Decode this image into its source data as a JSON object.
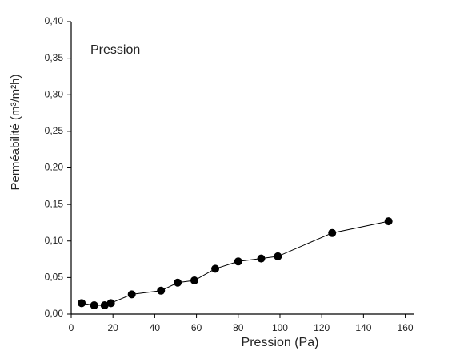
{
  "chart_data": {
    "type": "line",
    "annotation": "Pression",
    "x_label": "Pression (Pa)",
    "y_label": "Perméabilité (m³/m²h)",
    "x": [
      5,
      11,
      16,
      19,
      29,
      43,
      51,
      59,
      69,
      80,
      91,
      99,
      125,
      152
    ],
    "series": [
      {
        "name": "Pression",
        "color": "#000000",
        "values": [
          0.015,
          0.012,
          0.012,
          0.015,
          0.027,
          0.032,
          0.043,
          0.046,
          0.062,
          0.072,
          0.076,
          0.079,
          0.111,
          0.127
        ]
      }
    ],
    "xlim": [
      0,
      164
    ],
    "xticks": [
      0,
      20,
      40,
      60,
      80,
      100,
      120,
      140,
      160
    ],
    "ylim": [
      0,
      0.4
    ],
    "yticks": [
      {
        "value": 0,
        "label": "0,00"
      },
      {
        "value": 0.05,
        "label": "0,05"
      },
      {
        "value": 0.1,
        "label": "0,10"
      },
      {
        "value": 0.15,
        "label": "0,15"
      },
      {
        "value": 0.2,
        "label": "0,20"
      },
      {
        "value": 0.25,
        "label": "0,25"
      },
      {
        "value": 0.3,
        "label": "0,30"
      },
      {
        "value": 0.35,
        "label": "0,35"
      },
      {
        "value": 0.4,
        "label": "0,40"
      }
    ]
  }
}
